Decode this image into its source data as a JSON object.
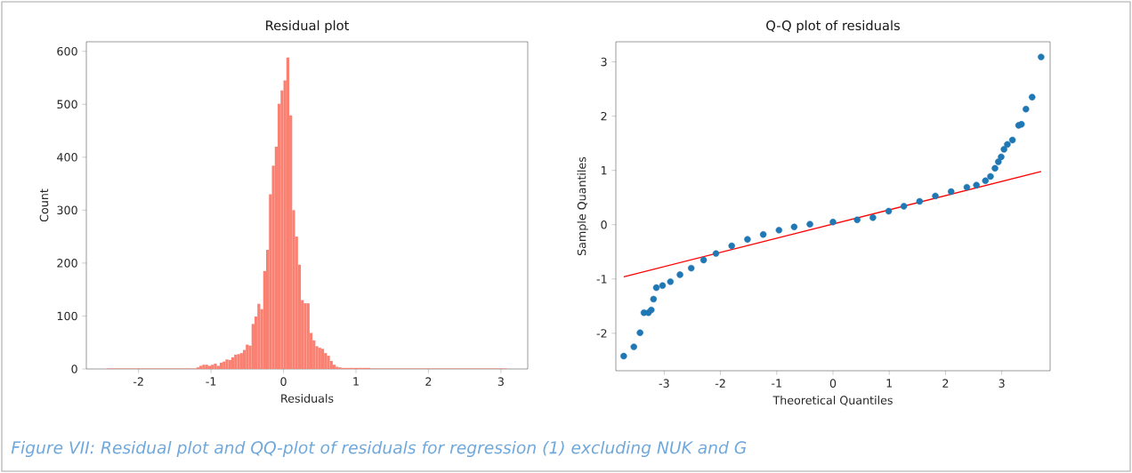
{
  "chart_data": [
    {
      "type": "histogram",
      "title": "Residual plot",
      "xlabel": "Residuals",
      "ylabel": "Count",
      "color": "#fa8072",
      "bins": [
        -2.44,
        -2.0,
        -1.6,
        -1.2,
        -1.16,
        -1.12,
        -1.08,
        -1.04,
        -1.0,
        -0.96,
        -0.92,
        -0.88,
        -0.84,
        -0.8,
        -0.76,
        -0.72,
        -0.68,
        -0.64,
        -0.6,
        -0.56,
        -0.52,
        -0.48,
        -0.44,
        -0.4,
        -0.36,
        -0.32,
        -0.28,
        -0.24,
        -0.2,
        -0.16,
        -0.12,
        -0.08,
        -0.04,
        0.0,
        0.04,
        0.08,
        0.12,
        0.16,
        0.2,
        0.24,
        0.28,
        0.32,
        0.36,
        0.4,
        0.44,
        0.48,
        0.52,
        0.56,
        0.6,
        0.64,
        0.68,
        0.72,
        0.76,
        0.8,
        0.84,
        1.2,
        1.6,
        2.0,
        2.4,
        3.08
      ],
      "values": [
        1,
        1,
        1,
        3,
        6,
        8,
        8,
        6,
        8,
        10,
        6,
        12,
        14,
        18,
        17,
        22,
        27,
        28,
        30,
        36,
        46,
        44,
        85,
        99,
        123,
        113,
        185,
        225,
        330,
        384,
        420,
        501,
        526,
        545,
        588,
        479,
        300,
        250,
        197,
        130,
        124,
        124,
        68,
        54,
        43,
        40,
        38,
        30,
        25,
        15,
        8,
        4,
        3,
        2,
        2,
        1,
        1,
        1,
        1
      ],
      "xlim": [
        -2.72,
        3.37
      ],
      "ylim": [
        0,
        618
      ],
      "xticks": [
        -2,
        -1,
        0,
        1,
        2,
        3
      ],
      "yticks": [
        0,
        100,
        200,
        300,
        400,
        500,
        600
      ],
      "annotations": [
        "Figure VII: Residual plot and QQ-plot of residuals for regression (1) excluding NUK and G"
      ]
    },
    {
      "type": "scatter",
      "title": "Q-Q plot of residuals",
      "xlabel": "Theoretical Quantiles",
      "ylabel": "Sample Quantiles",
      "xlim": [
        -3.86,
        3.86
      ],
      "ylim": [
        -2.69,
        3.37
      ],
      "xticks": [
        -3,
        -2,
        -1,
        0,
        1,
        2,
        3
      ],
      "yticks": [
        -2,
        -1,
        0,
        1,
        2,
        3
      ],
      "series": [
        {
          "type": "scatter",
          "marker": "circle",
          "color": "#1f77b4",
          "x": [
            -3.72,
            -3.54,
            -3.43,
            -3.36,
            -3.28,
            -3.23,
            -3.19,
            -3.14,
            -3.03,
            -2.89,
            -2.72,
            -2.52,
            -2.3,
            -2.08,
            -1.8,
            -1.52,
            -1.24,
            -0.96,
            -0.69,
            -0.41,
            0.0,
            0.43,
            0.71,
            0.99,
            1.26,
            1.54,
            1.82,
            2.1,
            2.38,
            2.55,
            2.71,
            2.8,
            2.88,
            2.94,
            2.99,
            3.04,
            3.1,
            3.19,
            3.3,
            3.35,
            3.43,
            3.54,
            3.7
          ],
          "values": [
            -2.42,
            -2.25,
            -1.99,
            -1.62,
            -1.62,
            -1.57,
            -1.37,
            -1.16,
            -1.12,
            -1.05,
            -0.92,
            -0.8,
            -0.65,
            -0.53,
            -0.39,
            -0.27,
            -0.18,
            -0.1,
            -0.04,
            0.01,
            0.05,
            0.09,
            0.13,
            0.25,
            0.34,
            0.43,
            0.53,
            0.61,
            0.69,
            0.73,
            0.81,
            0.89,
            1.04,
            1.16,
            1.25,
            1.39,
            1.48,
            1.56,
            1.83,
            1.85,
            2.13,
            2.35,
            3.09
          ]
        },
        {
          "type": "line",
          "color": "#ff0000",
          "x": [
            -3.72,
            3.7
          ],
          "values": [
            -0.96,
            0.98
          ]
        }
      ]
    }
  ]
}
